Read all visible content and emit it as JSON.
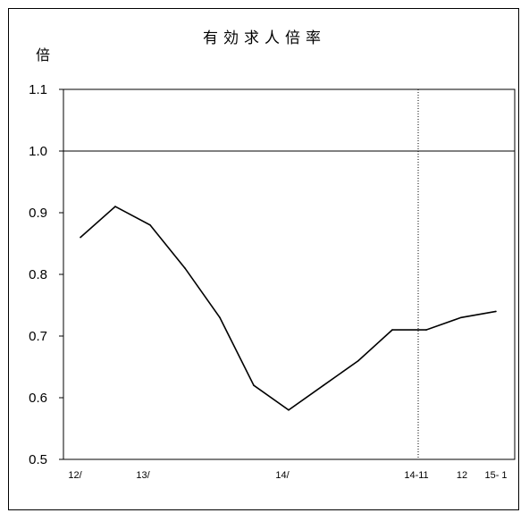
{
  "chart_data": {
    "type": "line",
    "title": "有効求人倍率",
    "ylabel": "倍",
    "xlabel": "",
    "ylim": [
      0.5,
      1.1
    ],
    "y_ticks": [
      "0.5",
      "0.6",
      "0.7",
      "0.8",
      "0.9",
      "1.0",
      "1.1"
    ],
    "x_ticks": [
      "12/",
      "13/",
      "14/",
      "14-11",
      "12",
      "15- 1"
    ],
    "reference_line": 1.0,
    "series": [
      {
        "values": [
          0.86,
          0.91,
          0.88,
          0.81,
          0.73,
          0.62,
          0.58,
          0.62,
          0.66,
          0.71,
          0.71,
          0.73,
          0.74
        ]
      }
    ],
    "grid": false,
    "line_color": "#000000"
  }
}
